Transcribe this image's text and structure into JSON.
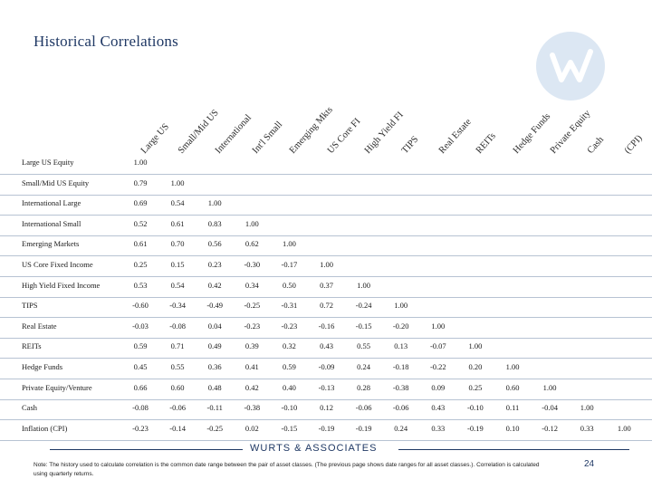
{
  "title": "Historical Correlations",
  "logo_icon": "wurts-w-logo-icon",
  "columns": [
    "Large US",
    "Small/Mid US",
    "International",
    "Int'l Small",
    "Emerging Mkts",
    "US Core FI",
    "High Yield FI",
    "TIPS",
    "Real Estate",
    "REITs",
    "Hedge Funds",
    "Private Equity",
    "Cash",
    "(CPI)"
  ],
  "rows": [
    {
      "label": "Large US Equity",
      "values": [
        "1.00"
      ]
    },
    {
      "label": "Small/Mid US Equity",
      "values": [
        "0.79",
        "1.00"
      ]
    },
    {
      "label": "International Large",
      "values": [
        "0.69",
        "0.54",
        "1.00"
      ]
    },
    {
      "label": "International Small",
      "values": [
        "0.52",
        "0.61",
        "0.83",
        "1.00"
      ]
    },
    {
      "label": "Emerging Markets",
      "values": [
        "0.61",
        "0.70",
        "0.56",
        "0.62",
        "1.00"
      ]
    },
    {
      "label": "US Core Fixed Income",
      "values": [
        "0.25",
        "0.15",
        "0.23",
        "-0.30",
        "-0.17",
        "1.00"
      ]
    },
    {
      "label": "High Yield Fixed Income",
      "values": [
        "0.53",
        "0.54",
        "0.42",
        "0.34",
        "0.50",
        "0.37",
        "1.00"
      ]
    },
    {
      "label": "TIPS",
      "values": [
        "-0.60",
        "-0.34",
        "-0.49",
        "-0.25",
        "-0.31",
        "0.72",
        "-0.24",
        "1.00"
      ]
    },
    {
      "label": "Real Estate",
      "values": [
        "-0.03",
        "-0.08",
        "0.04",
        "-0.23",
        "-0.23",
        "-0.16",
        "-0.15",
        "-0.20",
        "1.00"
      ]
    },
    {
      "label": "REITs",
      "values": [
        "0.59",
        "0.71",
        "0.49",
        "0.39",
        "0.32",
        "0.43",
        "0.55",
        "0.13",
        "-0.07",
        "1.00"
      ]
    },
    {
      "label": "Hedge Funds",
      "values": [
        "0.45",
        "0.55",
        "0.36",
        "0.41",
        "0.59",
        "-0.09",
        "0.24",
        "-0.18",
        "-0.22",
        "0.20",
        "1.00"
      ]
    },
    {
      "label": "Private Equity/Venture",
      "values": [
        "0.66",
        "0.60",
        "0.48",
        "0.42",
        "0.40",
        "-0.13",
        "0.28",
        "-0.38",
        "0.09",
        "0.25",
        "0.60",
        "1.00"
      ]
    },
    {
      "label": "Cash",
      "values": [
        "-0.08",
        "-0.06",
        "-0.11",
        "-0.38",
        "-0.10",
        "0.12",
        "-0.06",
        "-0.06",
        "0.43",
        "-0.10",
        "0.11",
        "-0.04",
        "1.00"
      ]
    },
    {
      "label": "Inflation (CPI)",
      "values": [
        "-0.23",
        "-0.14",
        "-0.25",
        "0.02",
        "-0.15",
        "-0.19",
        "-0.19",
        "0.24",
        "0.33",
        "-0.19",
        "0.10",
        "-0.12",
        "0.33",
        "1.00"
      ]
    }
  ],
  "footer": {
    "company": "WURTS & ASSOCIATES",
    "note": "Note: The history used to calculate correlation is the common date range between the pair of asset classes. (The previous page shows date ranges for all asset classes.). Correlation is calculated using quarterly returns.",
    "page_number": "24"
  },
  "colors": {
    "title": "#1f3864",
    "row_rule": "#b7c3d3",
    "logo": "#dce7f3"
  }
}
